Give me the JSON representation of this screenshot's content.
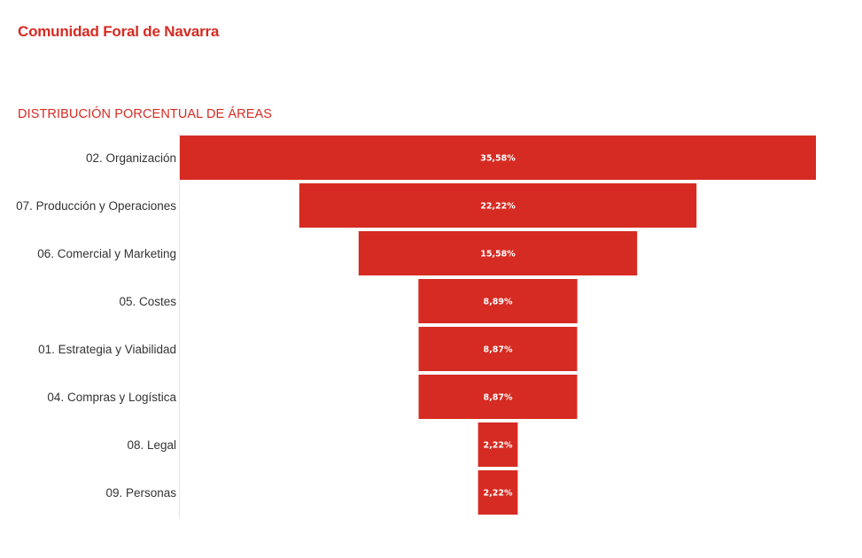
{
  "header": {
    "title": "Comunidad Foral de Navarra"
  },
  "colors": {
    "accent": "#d62b22",
    "bar": "#d62b22",
    "value_label": "#ffffff",
    "category_label": "#333333"
  },
  "chart_data": {
    "type": "bar",
    "subtype": "funnel",
    "title": "DISTRIBUCIÓN PORCENTUAL DE ÁREAS",
    "xlabel": "",
    "ylabel": "",
    "grid": false,
    "legend": "none",
    "categories": [
      "02. Organización",
      "07. Producción y Operaciones",
      "06. Comercial y Marketing",
      "05. Costes",
      "01. Estrategia y Viabilidad",
      "04. Compras y Logística",
      "08. Legal",
      "09. Personas"
    ],
    "values": [
      35.58,
      22.22,
      15.58,
      8.89,
      8.87,
      8.87,
      2.22,
      2.22
    ],
    "value_labels": [
      "35,58%",
      "22,22%",
      "15,58%",
      "8,89%",
      "8,87%",
      "8,87%",
      "2,22%",
      "2,22%"
    ],
    "unit": "%"
  }
}
